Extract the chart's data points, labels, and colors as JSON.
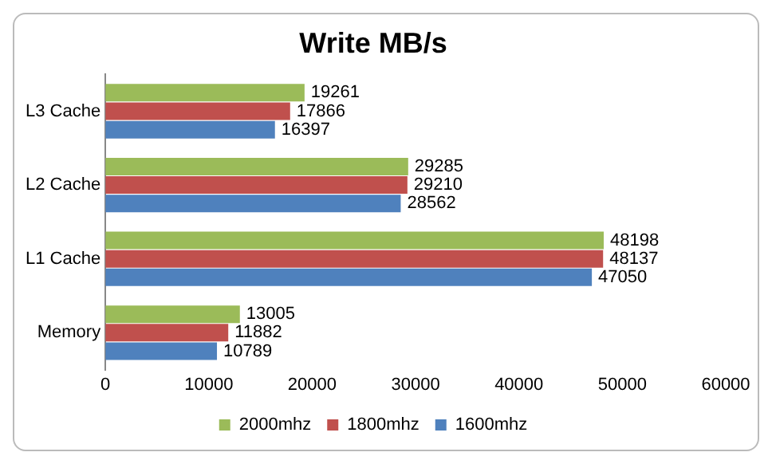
{
  "chart_data": {
    "type": "bar",
    "orientation": "horizontal",
    "title": "Write MB/s",
    "categories": [
      "L3 Cache",
      "L2 Cache",
      "L1 Cache",
      "Memory"
    ],
    "series": [
      {
        "name": "2000mhz",
        "color": "#9bbb59",
        "values": [
          19261,
          29285,
          48198,
          13005
        ]
      },
      {
        "name": "1800mhz",
        "color": "#c0504d",
        "values": [
          17866,
          29210,
          48137,
          11882
        ]
      },
      {
        "name": "1600mhz",
        "color": "#4f81bd",
        "values": [
          16397,
          28562,
          47050,
          10789
        ]
      }
    ],
    "xlim": [
      0,
      60000
    ],
    "xticks": [
      0,
      10000,
      20000,
      30000,
      40000,
      50000,
      60000
    ],
    "grid": false,
    "legend": "bottom",
    "data_labels": true
  }
}
